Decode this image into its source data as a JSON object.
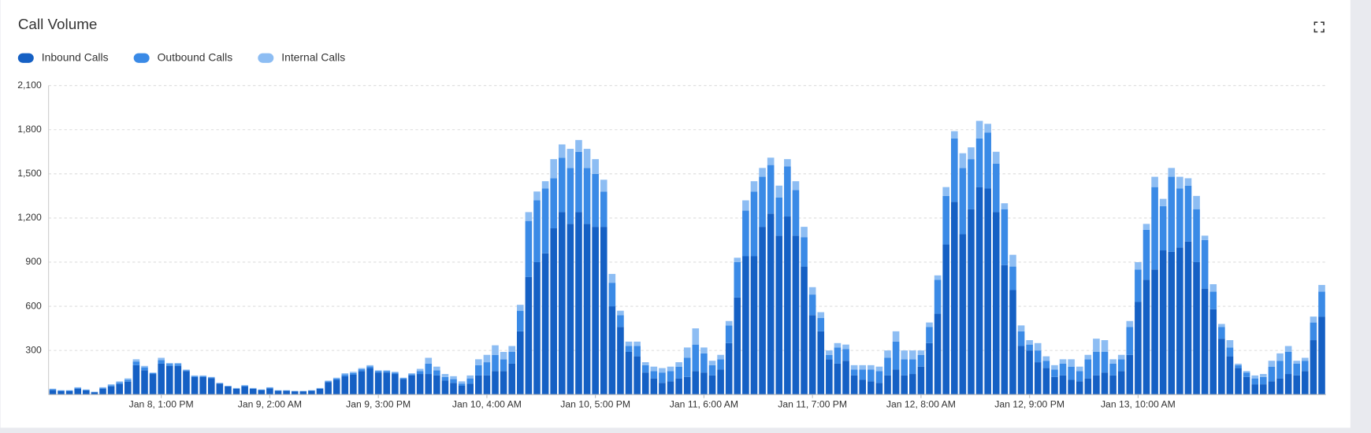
{
  "chart_data": {
    "type": "stacked-bar",
    "title": "Call Volume",
    "categories": [
      null,
      null,
      null,
      null,
      null,
      null,
      null,
      null,
      null,
      null,
      null,
      null,
      null,
      "Jan 8, 1:00 PM",
      null,
      null,
      null,
      null,
      null,
      null,
      null,
      null,
      null,
      null,
      null,
      null,
      "Jan 9, 2:00 AM",
      null,
      null,
      null,
      null,
      null,
      null,
      null,
      null,
      null,
      null,
      null,
      null,
      "Jan 9, 3:00 PM",
      null,
      null,
      null,
      null,
      null,
      null,
      null,
      null,
      null,
      null,
      null,
      null,
      "Jan 10, 4:00 AM",
      null,
      null,
      null,
      null,
      null,
      null,
      null,
      null,
      null,
      null,
      null,
      null,
      "Jan 10, 5:00 PM",
      null,
      null,
      null,
      null,
      null,
      null,
      null,
      null,
      null,
      null,
      null,
      null,
      "Jan 11, 6:00 AM",
      null,
      null,
      null,
      null,
      null,
      null,
      null,
      null,
      null,
      null,
      null,
      null,
      "Jan 11, 7:00 PM",
      null,
      null,
      null,
      null,
      null,
      null,
      null,
      null,
      null,
      null,
      null,
      null,
      "Jan 12, 8:00 AM",
      null,
      null,
      null,
      null,
      null,
      null,
      null,
      null,
      null,
      null,
      null,
      null,
      "Jan 12, 9:00 PM",
      null,
      null,
      null,
      null,
      null,
      null,
      null,
      null,
      null,
      null,
      null,
      null,
      "Jan 13, 10:00 AM",
      null,
      null,
      null,
      null,
      null,
      null,
      null,
      null,
      null,
      null,
      null,
      null,
      null,
      null,
      null,
      null,
      null,
      null,
      null,
      null,
      null,
      null
    ],
    "series": [
      {
        "name": "Inbound Calls",
        "color": "#1560c4",
        "values": [
          30,
          24,
          24,
          40,
          28,
          16,
          40,
          56,
          72,
          88,
          200,
          165,
          140,
          210,
          195,
          195,
          160,
          120,
          120,
          112,
          74,
          55,
          40,
          55,
          40,
          30,
          42,
          26,
          26,
          22,
          22,
          26,
          40,
          85,
          100,
          125,
          135,
          160,
          180,
          150,
          150,
          140,
          105,
          130,
          140,
          140,
          130,
          95,
          80,
          60,
          75,
          130,
          130,
          160,
          160,
          210,
          430,
          800,
          900,
          960,
          1130,
          1240,
          1160,
          1240,
          1160,
          1140,
          1140,
          600,
          460,
          290,
          260,
          150,
          110,
          80,
          90,
          110,
          120,
          160,
          150,
          130,
          170,
          350,
          660,
          940,
          940,
          1140,
          1230,
          1080,
          1210,
          1080,
          870,
          540,
          430,
          240,
          210,
          230,
          130,
          100,
          90,
          80,
          130,
          170,
          130,
          140,
          190,
          350,
          550,
          1020,
          1310,
          1090,
          1260,
          1410,
          1400,
          1240,
          880,
          710,
          330,
          300,
          220,
          180,
          120,
          130,
          100,
          90,
          110,
          130,
          150,
          130,
          160,
          270,
          630,
          780,
          850,
          980,
          970,
          1000,
          1040,
          900,
          720,
          580,
          380,
          260,
          180,
          120,
          70,
          70,
          90,
          110,
          140,
          130,
          160,
          370,
          530
        ]
      },
      {
        "name": "Outbound Calls",
        "color": "#3a8ae6",
        "values": [
          6,
          4,
          4,
          6,
          4,
          2,
          6,
          8,
          11,
          13,
          25,
          20,
          6,
          25,
          12,
          12,
          6,
          6,
          6,
          5,
          4,
          3,
          3,
          6,
          3,
          3,
          5,
          2,
          2,
          2,
          2,
          2,
          3,
          6,
          9,
          12,
          12,
          12,
          12,
          9,
          9,
          9,
          6,
          9,
          20,
          70,
          35,
          25,
          25,
          15,
          35,
          70,
          90,
          110,
          80,
          80,
          140,
          380,
          420,
          440,
          340,
          370,
          380,
          410,
          380,
          360,
          240,
          160,
          80,
          40,
          70,
          50,
          50,
          70,
          70,
          80,
          130,
          180,
          130,
          70,
          70,
          120,
          240,
          310,
          440,
          340,
          330,
          260,
          340,
          310,
          200,
          140,
          90,
          30,
          110,
          80,
          40,
          70,
          80,
          80,
          120,
          190,
          110,
          100,
          80,
          110,
          230,
          330,
          430,
          450,
          340,
          330,
          380,
          330,
          380,
          160,
          100,
          40,
          80,
          50,
          50,
          80,
          90,
          70,
          130,
          160,
          140,
          80,
          80,
          190,
          220,
          340,
          560,
          300,
          510,
          400,
          380,
          360,
          330,
          120,
          80,
          60,
          20,
          30,
          40,
          50,
          100,
          120,
          150,
          80,
          70,
          120,
          170
        ]
      },
      {
        "name": "Internal Calls",
        "color": "#8dbdf3",
        "values": [
          4,
          2,
          2,
          4,
          3,
          2,
          4,
          6,
          7,
          9,
          15,
          10,
          4,
          15,
          8,
          8,
          4,
          4,
          4,
          3,
          2,
          2,
          2,
          4,
          2,
          2,
          3,
          2,
          2,
          1,
          1,
          2,
          2,
          4,
          6,
          8,
          8,
          8,
          8,
          6,
          6,
          6,
          4,
          6,
          15,
          40,
          25,
          20,
          20,
          15,
          20,
          40,
          50,
          65,
          50,
          40,
          40,
          60,
          60,
          50,
          130,
          90,
          130,
          80,
          130,
          100,
          80,
          60,
          30,
          30,
          30,
          20,
          30,
          30,
          30,
          30,
          70,
          110,
          40,
          30,
          30,
          30,
          30,
          70,
          70,
          60,
          50,
          80,
          50,
          60,
          70,
          50,
          40,
          30,
          30,
          30,
          30,
          30,
          30,
          30,
          50,
          70,
          60,
          60,
          30,
          30,
          30,
          60,
          50,
          100,
          80,
          120,
          60,
          80,
          40,
          80,
          40,
          30,
          50,
          30,
          30,
          30,
          50,
          30,
          30,
          90,
          80,
          30,
          30,
          40,
          50,
          40,
          70,
          50,
          60,
          80,
          50,
          90,
          30,
          50,
          20,
          50,
          10,
          10,
          20,
          20,
          40,
          50,
          40,
          20,
          20,
          40,
          45
        ]
      }
    ],
    "ylim": [
      0,
      2100
    ],
    "yticks": [
      300,
      600,
      900,
      {
        "value": 1200,
        "label": "1,200"
      },
      {
        "value": 1500,
        "label": "1,500"
      },
      {
        "value": 1800,
        "label": "1,800"
      },
      {
        "value": 2100,
        "label": "2,100"
      }
    ],
    "grid": true,
    "legend": "top-left"
  }
}
